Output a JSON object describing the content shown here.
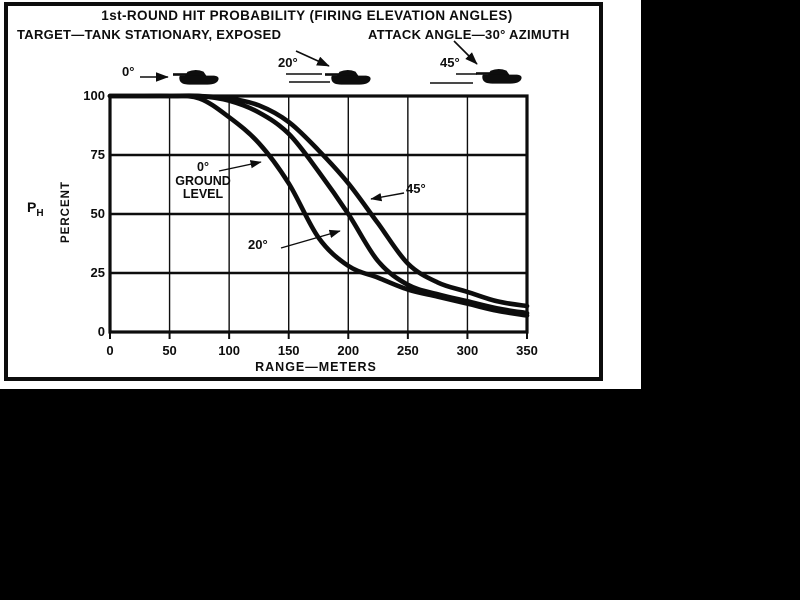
{
  "figure": {
    "title": "1st-ROUND HIT PROBABILITY (FIRING ELEVATION ANGLES)",
    "subtitle_left": "TARGET—TANK STATIONARY, EXPOSED",
    "subtitle_right": "ATTACK ANGLE—30° AZIMUTH"
  },
  "tanks": [
    {
      "angle_label": "0°"
    },
    {
      "angle_label": "20°"
    },
    {
      "angle_label": "45°"
    }
  ],
  "annotations": {
    "curve0": {
      "line1": "0°",
      "line2": "GROUND",
      "line3": "LEVEL"
    },
    "curve20": {
      "label": "20°"
    },
    "curve45": {
      "label": "45°"
    }
  },
  "chart_data": {
    "type": "line",
    "title": "1st-ROUND HIT PROBABILITY (FIRING ELEVATION ANGLES)",
    "xlabel": "RANGE—METERS",
    "ylabel": "PERCENT",
    "ylabel_symbol": "P",
    "ylabel_symbol_sub": "H",
    "xlim": [
      0,
      350
    ],
    "ylim": [
      0,
      100
    ],
    "xticks": [
      0,
      50,
      100,
      150,
      200,
      250,
      300,
      350
    ],
    "yticks": [
      0,
      25,
      50,
      75,
      100
    ],
    "grid": true,
    "legend_position": "inline-annotations",
    "x": [
      0,
      25,
      50,
      75,
      100,
      125,
      150,
      175,
      200,
      225,
      250,
      275,
      300,
      325,
      350
    ],
    "series": [
      {
        "name": "0° GROUND LEVEL",
        "values": [
          100,
          100,
          100,
          99,
          91,
          80,
          63,
          40,
          28,
          23,
          18,
          15,
          12,
          9,
          7
        ]
      },
      {
        "name": "20°",
        "values": [
          100,
          100,
          100,
          100,
          98,
          93,
          84,
          68,
          50,
          30,
          20,
          16,
          13,
          10,
          8
        ]
      },
      {
        "name": "45°",
        "values": [
          100,
          100,
          100,
          100,
          99,
          96,
          89,
          77,
          63,
          46,
          29,
          21,
          17,
          13,
          11
        ]
      }
    ]
  },
  "colors": {
    "ink": "#0d0d0d",
    "paper": "#ffffff",
    "background": "#000000"
  }
}
